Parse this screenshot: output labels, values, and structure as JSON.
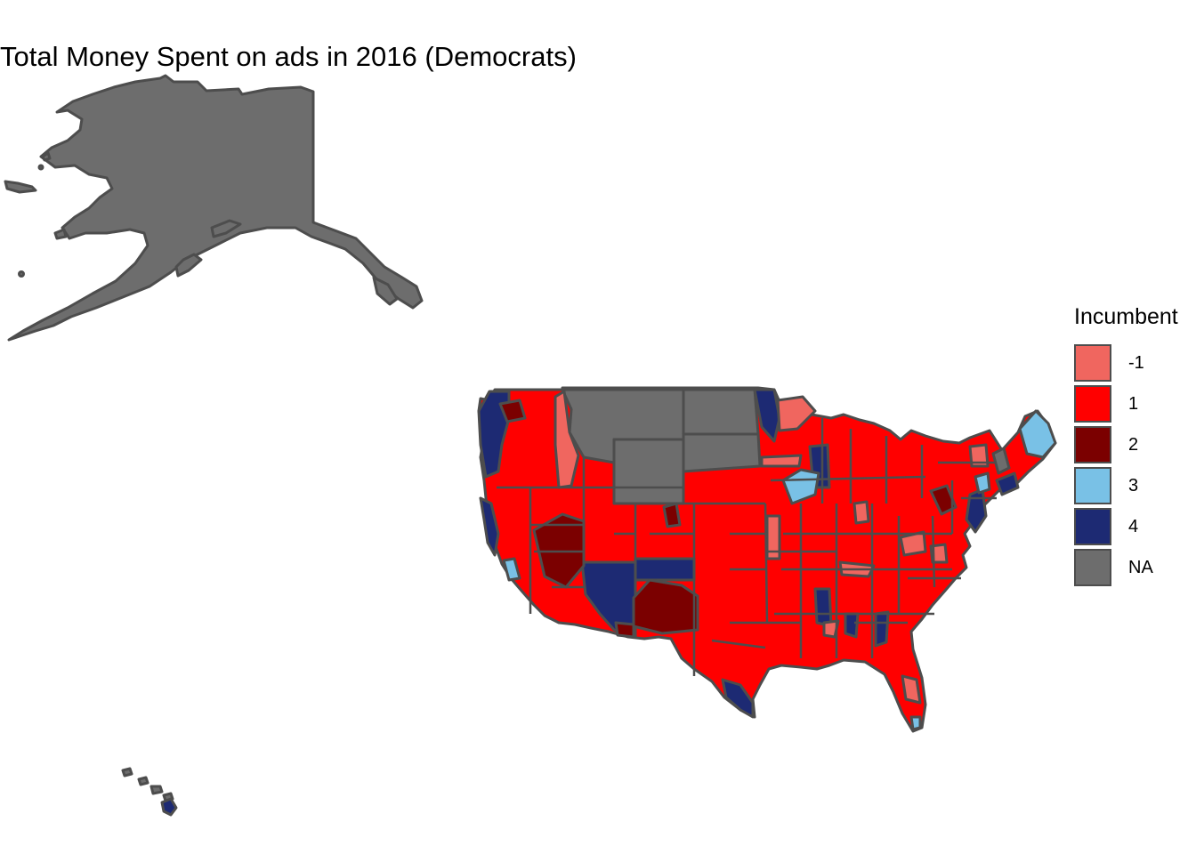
{
  "title": "Total Money Spent on ads in 2016 (Democrats)",
  "legend": {
    "title": "Incumbent",
    "items": [
      {
        "label": "-1",
        "color": "#F0665F"
      },
      {
        "label": "1",
        "color": "#FF0000"
      },
      {
        "label": "2",
        "color": "#7B0000"
      },
      {
        "label": "3",
        "color": "#79C1E6"
      },
      {
        "label": "4",
        "color": "#1D2A73"
      },
      {
        "label": "NA",
        "color": "#6D6D6D"
      }
    ]
  },
  "colors": {
    "border": "#4d4d4d",
    "na": "#6D6D6D",
    "background": "#ffffff"
  }
}
